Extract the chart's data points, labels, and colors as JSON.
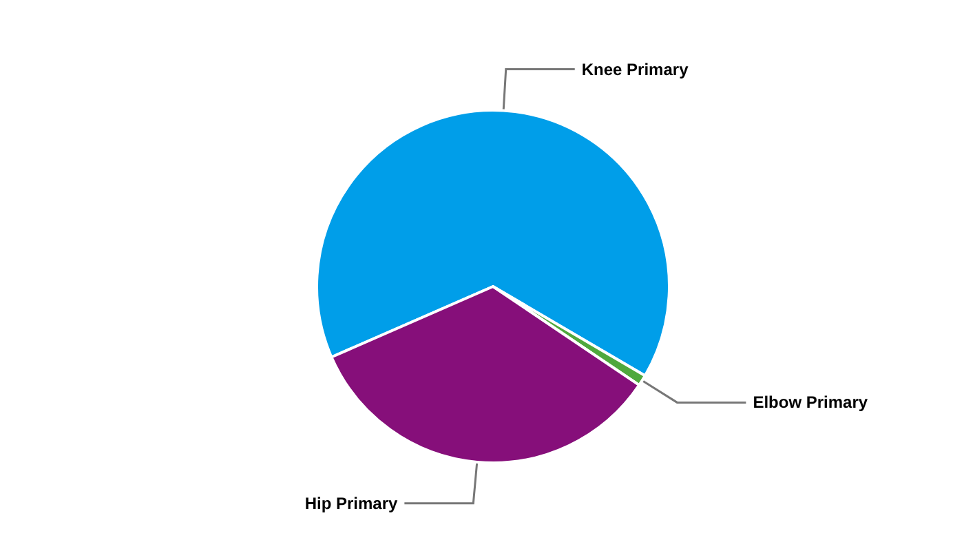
{
  "chart_data": {
    "type": "pie",
    "categories": [
      "Knee Primary",
      "Elbow Primary",
      "Hip Primary"
    ],
    "values": [
      65,
      1,
      34
    ],
    "colors": [
      "#009ee9",
      "#4fa83d",
      "#860f7a"
    ],
    "legend": false
  }
}
